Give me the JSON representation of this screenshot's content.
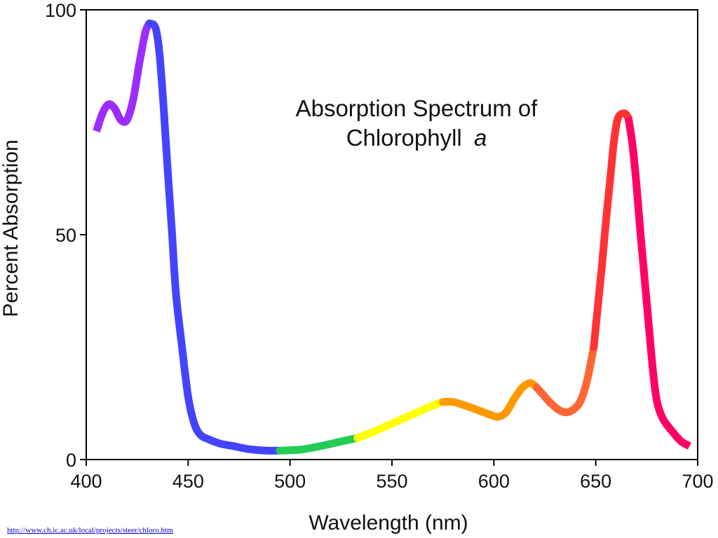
{
  "chart_data": {
    "type": "line",
    "title_line1": "Absorption Spectrum of",
    "title_line2_main": "Chlorophyll",
    "title_line2_italic": "a",
    "xlabel": "Wavelength (nm)",
    "ylabel": "Percent Absorption",
    "xlim": [
      400,
      700
    ],
    "ylim": [
      0,
      100
    ],
    "x_ticks": [
      400,
      450,
      500,
      550,
      600,
      650,
      700
    ],
    "y_ticks": [
      0,
      50,
      100
    ],
    "grid": false,
    "series": [
      {
        "segments": [
          {
            "color": "#9c2cff",
            "points": [
              [
                405,
                73
              ],
              [
                408,
                77
              ],
              [
                411,
                79
              ],
              [
                414,
                78
              ],
              [
                417,
                75.5
              ],
              [
                420,
                75.5
              ],
              [
                423,
                80
              ],
              [
                426,
                88
              ],
              [
                429,
                95
              ],
              [
                431,
                97
              ]
            ]
          },
          {
            "color": "#4444ff",
            "points": [
              [
                431,
                97
              ],
              [
                434,
                96
              ],
              [
                436,
                90
              ],
              [
                438,
                78
              ],
              [
                440,
                64
              ],
              [
                442,
                51
              ],
              [
                444,
                37
              ],
              [
                447,
                25
              ],
              [
                450,
                14
              ],
              [
                453,
                8
              ],
              [
                456,
                5.5
              ],
              [
                460,
                4.5
              ],
              [
                466,
                3.5
              ],
              [
                472,
                3
              ],
              [
                480,
                2.3
              ],
              [
                488,
                2
              ],
              [
                495,
                2
              ]
            ]
          },
          {
            "color": "#22cc55",
            "points": [
              [
                495,
                2
              ],
              [
                505,
                2.2
              ],
              [
                515,
                3
              ],
              [
                525,
                4
              ],
              [
                533,
                4.8
              ]
            ]
          },
          {
            "color": "#ffff00",
            "points": [
              [
                533,
                4.8
              ],
              [
                540,
                6
              ],
              [
                550,
                8
              ],
              [
                560,
                10
              ],
              [
                570,
                12
              ],
              [
                575,
                12.8
              ]
            ]
          },
          {
            "color": "#ff9900",
            "points": [
              [
                575,
                12.8
              ],
              [
                580,
                12.8
              ],
              [
                586,
                12
              ],
              [
                592,
                11
              ],
              [
                598,
                10
              ],
              [
                602,
                9.5
              ],
              [
                606,
                10.5
              ],
              [
                610,
                13.5
              ],
              [
                614,
                16
              ],
              [
                618,
                17
              ],
              [
                621,
                16
              ]
            ]
          },
          {
            "color": "#ff6633",
            "points": [
              [
                621,
                16
              ],
              [
                624,
                14.5
              ],
              [
                628,
                12.5
              ],
              [
                632,
                11
              ],
              [
                636,
                10.5
              ],
              [
                640,
                11.5
              ],
              [
                643,
                13.5
              ],
              [
                646,
                18
              ],
              [
                649,
                25
              ]
            ]
          },
          {
            "color": "#ff3333",
            "points": [
              [
                649,
                25
              ],
              [
                651,
                34
              ],
              [
                653,
                43
              ],
              [
                655,
                53
              ],
              [
                657,
                62
              ],
              [
                659,
                71
              ],
              [
                661,
                76
              ],
              [
                664,
                77
              ],
              [
                666,
                76
              ]
            ]
          },
          {
            "color": "#ff0066",
            "points": [
              [
                666,
                76
              ],
              [
                668,
                70
              ],
              [
                670,
                61
              ],
              [
                672,
                50
              ],
              [
                674,
                40
              ],
              [
                676,
                30
              ],
              [
                678,
                20
              ],
              [
                680,
                13
              ],
              [
                683,
                9
              ],
              [
                688,
                6
              ],
              [
                692,
                4
              ],
              [
                696,
                3
              ]
            ]
          }
        ]
      }
    ]
  },
  "footer": {
    "link_text": "http://www.ch.ic.ac.uk/local/projects/steer/chloro.htm"
  }
}
